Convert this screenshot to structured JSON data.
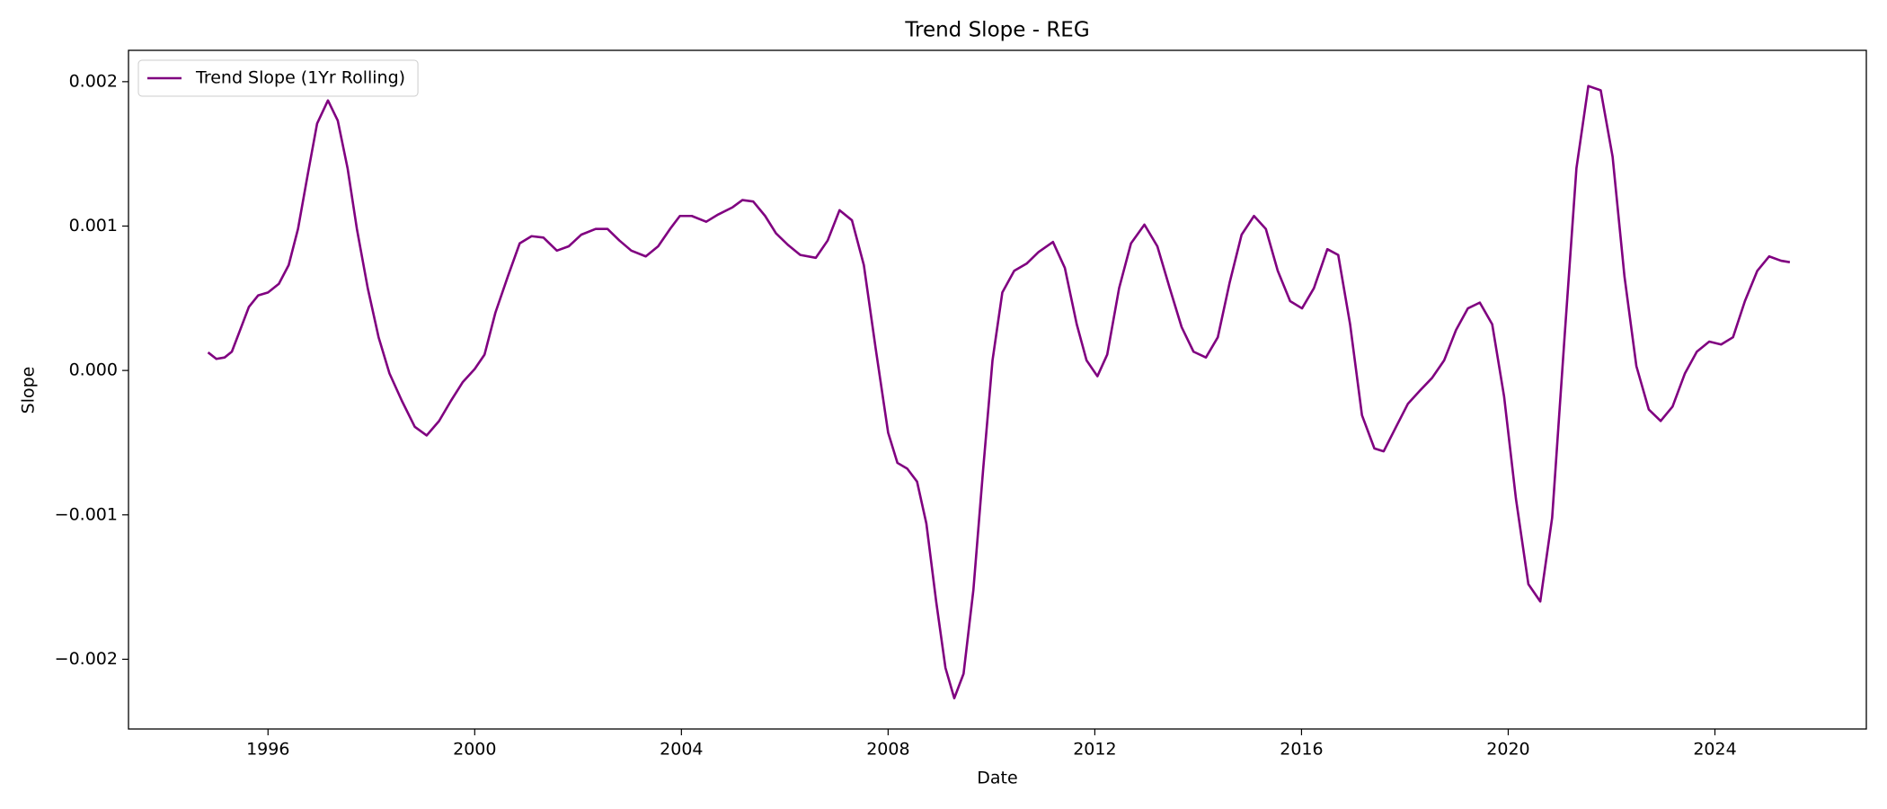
{
  "chart_data": {
    "type": "line",
    "title": "Trend Slope - REG",
    "xlabel": "Date",
    "ylabel": "Slope",
    "x": [
      1994.84,
      1995.0,
      1995.16,
      1995.3,
      1995.46,
      1995.63,
      1995.81,
      1996.0,
      1996.21,
      1996.4,
      1996.58,
      1996.77,
      1996.95,
      1997.16,
      1997.35,
      1997.54,
      1997.72,
      1997.93,
      1998.14,
      1998.35,
      1998.59,
      1998.84,
      1999.07,
      1999.31,
      1999.54,
      1999.77,
      2000.0,
      2000.19,
      2000.4,
      2000.64,
      2000.87,
      2001.1,
      2001.33,
      2001.59,
      2001.82,
      2002.06,
      2002.34,
      2002.57,
      2002.8,
      2003.03,
      2003.31,
      2003.55,
      2003.78,
      2003.97,
      2004.2,
      2004.48,
      2004.71,
      2004.99,
      2005.18,
      2005.39,
      2005.62,
      2005.83,
      2006.06,
      2006.3,
      2006.6,
      2006.83,
      2007.06,
      2007.3,
      2007.53,
      2007.76,
      2008.0,
      2008.18,
      2008.37,
      2008.56,
      2008.74,
      2008.93,
      2009.11,
      2009.28,
      2009.46,
      2009.65,
      2009.84,
      2010.02,
      2010.21,
      2010.44,
      2010.68,
      2010.91,
      2011.19,
      2011.42,
      2011.65,
      2011.84,
      2012.05,
      2012.24,
      2012.47,
      2012.7,
      2012.96,
      2013.21,
      2013.45,
      2013.68,
      2013.91,
      2014.15,
      2014.38,
      2014.61,
      2014.84,
      2015.08,
      2015.31,
      2015.54,
      2015.78,
      2016.01,
      2016.24,
      2016.5,
      2016.71,
      2016.94,
      2017.17,
      2017.41,
      2017.59,
      2017.83,
      2018.06,
      2018.29,
      2018.53,
      2018.76,
      2018.99,
      2019.22,
      2019.45,
      2019.69,
      2019.92,
      2020.15,
      2020.39,
      2020.62,
      2020.85,
      2021.09,
      2021.32,
      2021.55,
      2021.79,
      2022.02,
      2022.25,
      2022.48,
      2022.72,
      2022.95,
      2023.18,
      2023.42,
      2023.65,
      2023.89,
      2024.12,
      2024.35,
      2024.58,
      2024.82,
      2025.05,
      2025.28,
      2025.45
    ],
    "series": [
      {
        "name": "Trend Slope (1Yr Rolling)",
        "color": "#800080",
        "values": [
          0.000125,
          8e-05,
          9e-05,
          0.00013,
          0.00028,
          0.00044,
          0.00052,
          0.00054,
          0.0006,
          0.00073,
          0.00098,
          0.00136,
          0.00171,
          0.00187,
          0.00173,
          0.0014,
          0.00098,
          0.00057,
          0.00023,
          -2e-05,
          -0.00021,
          -0.00039,
          -0.00045,
          -0.00035,
          -0.00021,
          -8e-05,
          1e-05,
          0.00011,
          0.0004,
          0.00065,
          0.00088,
          0.00093,
          0.00092,
          0.00083,
          0.00086,
          0.00094,
          0.00098,
          0.00098,
          0.0009,
          0.00083,
          0.00079,
          0.00086,
          0.00098,
          0.00107,
          0.00107,
          0.00103,
          0.00108,
          0.00113,
          0.00118,
          0.00117,
          0.00107,
          0.00095,
          0.00087,
          0.0008,
          0.00078,
          0.0009,
          0.00111,
          0.00104,
          0.00073,
          0.00015,
          -0.00043,
          -0.00064,
          -0.00068,
          -0.00077,
          -0.00106,
          -0.0016,
          -0.00206,
          -0.00227,
          -0.0021,
          -0.00152,
          -0.00068,
          7e-05,
          0.00054,
          0.00069,
          0.00074,
          0.00082,
          0.00089,
          0.00071,
          0.00032,
          7e-05,
          -4e-05,
          0.00011,
          0.00057,
          0.00088,
          0.00101,
          0.00086,
          0.00057,
          0.0003,
          0.00013,
          9e-05,
          0.00023,
          0.00061,
          0.00094,
          0.00107,
          0.00098,
          0.00069,
          0.00048,
          0.00043,
          0.00057,
          0.00084,
          0.0008,
          0.00032,
          -0.00031,
          -0.00054,
          -0.00056,
          -0.00039,
          -0.00023,
          -0.00014,
          -5e-05,
          7e-05,
          0.00028,
          0.00043,
          0.00047,
          0.00032,
          -0.00018,
          -0.00089,
          -0.00148,
          -0.0016,
          -0.00102,
          0.00023,
          0.0014,
          0.00197,
          0.00194,
          0.00148,
          0.00065,
          3e-05,
          -0.00027,
          -0.00035,
          -0.00025,
          -2e-05,
          0.00013,
          0.0002,
          0.00018,
          0.00023,
          0.00048,
          0.00069,
          0.00079,
          0.00076,
          0.00075
        ]
      }
    ],
    "xlim": [
      1993.3,
      2026.93
    ],
    "xticks": [
      1996,
      2000,
      2004,
      2008,
      2012,
      2016,
      2020,
      2024
    ],
    "ylim": [
      -0.002483,
      0.002217
    ],
    "yticks": [
      {
        "value": -0.002,
        "label": "−0.002"
      },
      {
        "value": -0.001,
        "label": "−0.001"
      },
      {
        "value": 0,
        "label": "0.000"
      },
      0.001,
      0.002
    ],
    "grid": false,
    "legend": "upper left"
  }
}
